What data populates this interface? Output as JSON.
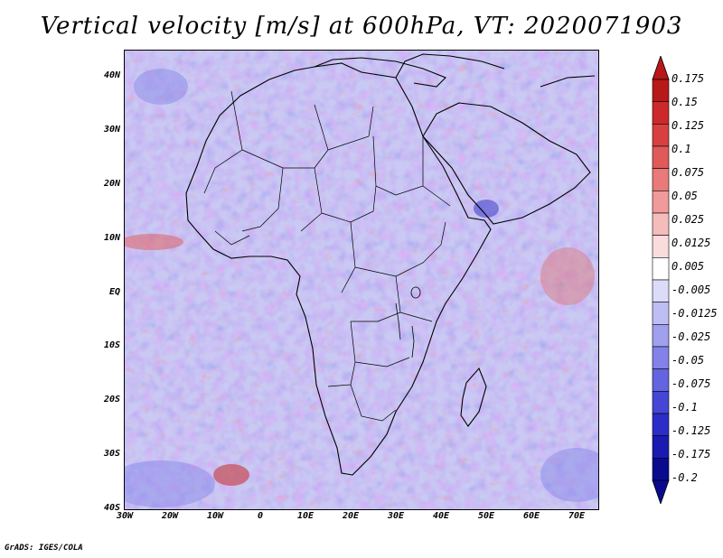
{
  "title": "Vertical velocity [m/s] at 600hPa, VT: 2020071903",
  "footer": "GrADS: IGES/COLA",
  "map": {
    "lat_labels": [
      "40N",
      "30N",
      "20N",
      "10N",
      "EQ",
      "10S",
      "20S",
      "30S",
      "40S"
    ],
    "lon_labels": [
      "30W",
      "20W",
      "10W",
      "0",
      "10E",
      "20E",
      "30E",
      "40E",
      "50E",
      "60E",
      "70E"
    ]
  },
  "colorbar": {
    "labels": [
      "0.175",
      "0.15",
      "0.125",
      "0.1",
      "0.075",
      "0.05",
      "0.025",
      "0.0125",
      "0.005",
      "-0.005",
      "-0.0125",
      "-0.025",
      "-0.05",
      "-0.075",
      "-0.1",
      "-0.125",
      "-0.175",
      "-0.2"
    ],
    "colors": [
      "#b81818",
      "#cc2a2a",
      "#d84040",
      "#e05a5a",
      "#e87a7a",
      "#f09a9a",
      "#f5bcbc",
      "#fadcdc",
      "#ffffff",
      "#dcdcfa",
      "#bebef5",
      "#a0a0ef",
      "#8282e8",
      "#6464e0",
      "#4646d6",
      "#2c2cc8",
      "#1a1ab0",
      "#0a0a8e"
    ],
    "under_color": "#0a0a8e",
    "over_color": "#b81818"
  }
}
